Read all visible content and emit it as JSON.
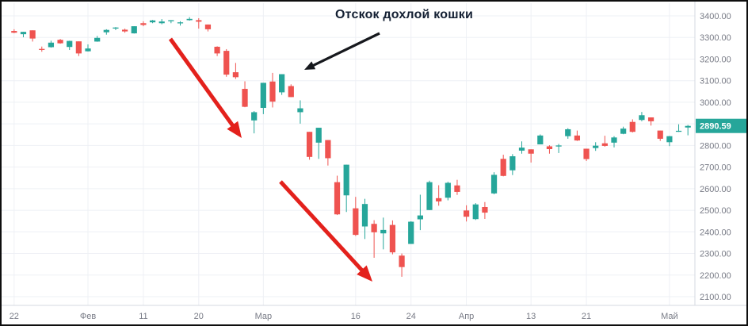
{
  "annotations": {
    "label": "Отскок дохлой кошки",
    "black_arrow": {
      "from": [
        477,
        40
      ],
      "to": [
        382,
        86
      ]
    },
    "red_arrows": [
      {
        "from": [
          213,
          47
        ],
        "to": [
          303,
          172
        ]
      },
      {
        "from": [
          352,
          227
        ],
        "to": [
          468,
          353
        ]
      }
    ]
  },
  "price_label": {
    "value": "2890.59"
  },
  "colors": {
    "up": "#26a69a",
    "down": "#ef5350",
    "grid": "#eef0f5",
    "axis_line": "#d6d9e0",
    "axis_text": "#787b86",
    "arrow_red": "#e3211c",
    "arrow_black": "#16181d",
    "annotation_text": "#142033",
    "badge_text": "#ffffff"
  },
  "chart_data": {
    "type": "candlestick",
    "legend_position": "none",
    "grid": true,
    "y_axis": {
      "side": "right",
      "min": 2100,
      "max": 3400,
      "step": 100,
      "tick_labels": [
        "3400.00",
        "3300.00",
        "3200.00",
        "3100.00",
        "3000.00",
        "2900.00",
        "2800.00",
        "2700.00",
        "2600.00",
        "2500.00",
        "2400.00",
        "2300.00",
        "2200.00",
        "2100.00"
      ]
    },
    "x_axis": {
      "ticks": [
        {
          "index": 0,
          "label": "22"
        },
        {
          "index": 8,
          "label": "Фев"
        },
        {
          "index": 14,
          "label": "11"
        },
        {
          "index": 20,
          "label": "20"
        },
        {
          "index": 27,
          "label": "Мар"
        },
        {
          "index": 37,
          "label": "16"
        },
        {
          "index": 43,
          "label": "24"
        },
        {
          "index": 49,
          "label": "Апр"
        },
        {
          "index": 56,
          "label": "13"
        },
        {
          "index": 62,
          "label": "21"
        },
        {
          "index": 71,
          "label": "Май"
        }
      ]
    },
    "last_price": 2890.59,
    "candles": [
      [
        3330,
        3338,
        3320,
        3322
      ],
      [
        3315,
        3326,
        3301,
        3326
      ],
      [
        3333,
        3333,
        3281,
        3295
      ],
      [
        3247,
        3258,
        3234,
        3244
      ],
      [
        3255,
        3285,
        3253,
        3276
      ],
      [
        3289,
        3293,
        3271,
        3273
      ],
      [
        3256,
        3285,
        3242,
        3284
      ],
      [
        3282,
        3282,
        3214,
        3226
      ],
      [
        3236,
        3268,
        3235,
        3249
      ],
      [
        3281,
        3307,
        3280,
        3298
      ],
      [
        3324,
        3338,
        3313,
        3335
      ],
      [
        3345,
        3348,
        3334,
        3346
      ],
      [
        3336,
        3341,
        3322,
        3328
      ],
      [
        3319,
        3352,
        3318,
        3352
      ],
      [
        3366,
        3375,
        3352,
        3358
      ],
      [
        3370,
        3381,
        3366,
        3379
      ],
      [
        3366,
        3385,
        3361,
        3374
      ],
      [
        3378,
        3380,
        3366,
        3380
      ],
      [
        3369,
        3375,
        3355,
        3370
      ],
      [
        3380,
        3394,
        3378,
        3386
      ],
      [
        3380,
        3389,
        3341,
        3373
      ],
      [
        3360,
        3360,
        3328,
        3338
      ],
      [
        3257,
        3259,
        3214,
        3226
      ],
      [
        3238,
        3246,
        3118,
        3128
      ],
      [
        3139,
        3182,
        3108,
        3116
      ],
      [
        3062,
        3097,
        2977,
        2979
      ],
      [
        2916,
        2959,
        2856,
        2954
      ],
      [
        2974,
        3090,
        2945,
        3090
      ],
      [
        3096,
        3136,
        2976,
        3003
      ],
      [
        3046,
        3130,
        3034,
        3130
      ],
      [
        3075,
        3083,
        3024,
        3024
      ],
      [
        2954,
        3009,
        2901,
        2972
      ],
      [
        2863,
        2863,
        2734,
        2747
      ],
      [
        2813,
        2882,
        2738,
        2882
      ],
      [
        2825,
        2825,
        2707,
        2741
      ],
      [
        2630,
        2660,
        2478,
        2481
      ],
      [
        2569,
        2711,
        2492,
        2711
      ],
      [
        2509,
        2562,
        2381,
        2386
      ],
      [
        2425,
        2553,
        2367,
        2529
      ],
      [
        2437,
        2454,
        2280,
        2398
      ],
      [
        2393,
        2466,
        2319,
        2409
      ],
      [
        2432,
        2453,
        2296,
        2305
      ],
      [
        2290,
        2300,
        2192,
        2237
      ],
      [
        2344,
        2449,
        2344,
        2447
      ],
      [
        2458,
        2572,
        2408,
        2476
      ],
      [
        2501,
        2637,
        2501,
        2630
      ],
      [
        2556,
        2616,
        2521,
        2541
      ],
      [
        2558,
        2632,
        2546,
        2627
      ],
      [
        2615,
        2641,
        2571,
        2585
      ],
      [
        2499,
        2523,
        2448,
        2470
      ],
      [
        2459,
        2533,
        2455,
        2527
      ],
      [
        2515,
        2538,
        2460,
        2489
      ],
      [
        2578,
        2676,
        2574,
        2664
      ],
      [
        2738,
        2757,
        2657,
        2659
      ],
      [
        2685,
        2760,
        2663,
        2750
      ],
      [
        2776,
        2819,
        2762,
        2790
      ],
      [
        2782,
        2782,
        2721,
        2762
      ],
      [
        2805,
        2851,
        2805,
        2846
      ],
      [
        2796,
        2801,
        2762,
        2783
      ],
      [
        2799,
        2807,
        2765,
        2800
      ],
      [
        2843,
        2880,
        2831,
        2875
      ],
      [
        2846,
        2869,
        2821,
        2823
      ],
      [
        2785,
        2785,
        2728,
        2737
      ],
      [
        2788,
        2815,
        2775,
        2799
      ],
      [
        2810,
        2845,
        2794,
        2798
      ],
      [
        2813,
        2843,
        2791,
        2837
      ],
      [
        2854,
        2887,
        2852,
        2878
      ],
      [
        2909,
        2921,
        2860,
        2863
      ],
      [
        2918,
        2955,
        2912,
        2940
      ],
      [
        2930,
        2930,
        2892,
        2912
      ],
      [
        2869,
        2869,
        2821,
        2831
      ],
      [
        2815,
        2844,
        2797,
        2843
      ],
      [
        2868,
        2898,
        2863,
        2868
      ],
      [
        2883,
        2895,
        2847,
        2890.59
      ]
    ]
  }
}
